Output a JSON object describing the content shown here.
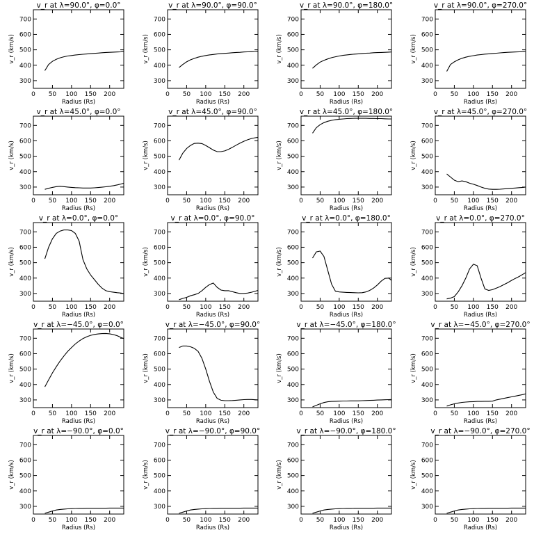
{
  "chart_data": {
    "type": "line",
    "grid": false,
    "xlim": [
      0,
      237
    ],
    "ylim": [
      250,
      760
    ],
    "xlabel": "Radius (Rs)",
    "ylabel": "v_r (km/s)",
    "xticks": [
      "0",
      "50",
      "100",
      "150",
      "200"
    ],
    "yticks": [
      "300",
      "400",
      "500",
      "600",
      "700"
    ],
    "x": [
      30,
      40,
      50,
      60,
      70,
      80,
      90,
      100,
      110,
      120,
      130,
      140,
      150,
      160,
      170,
      180,
      190,
      200,
      210,
      220,
      230,
      237
    ],
    "panels": [
      {
        "title": "v_r at λ=90.0°, φ=0.0°",
        "values": [
          365,
          405,
          425,
          438,
          448,
          455,
          460,
          463,
          466,
          469,
          471,
          473,
          475,
          477,
          479,
          481,
          483,
          484,
          485,
          486,
          487,
          490
        ]
      },
      {
        "title": "v_r at λ=90.0°, φ=90.0°",
        "values": [
          385,
          405,
          422,
          435,
          444,
          452,
          458,
          463,
          467,
          470,
          473,
          475,
          477,
          479,
          481,
          483,
          484,
          486,
          487,
          488,
          489,
          491
        ]
      },
      {
        "title": "v_r at λ=90.0°, φ=180.0°",
        "values": [
          380,
          402,
          420,
          432,
          441,
          449,
          455,
          460,
          464,
          467,
          470,
          472,
          474,
          476,
          478,
          479,
          481,
          482,
          483,
          484,
          485,
          486
        ]
      },
      {
        "title": "v_r at λ=90.0°, φ=270.0°",
        "values": [
          360,
          405,
          422,
          435,
          445,
          452,
          458,
          462,
          466,
          469,
          472,
          474,
          476,
          478,
          480,
          482,
          484,
          485,
          486,
          487,
          488,
          489
        ]
      },
      {
        "title": "v_r at λ=45.0°, φ=0.0°",
        "values": [
          285,
          292,
          298,
          303,
          305,
          303,
          300,
          298,
          296,
          295,
          294,
          294,
          294,
          295,
          297,
          299,
          302,
          305,
          309,
          314,
          320,
          325
        ]
      },
      {
        "title": "v_r at λ=45.0°, φ=90.0°",
        "values": [
          475,
          520,
          550,
          570,
          583,
          585,
          582,
          570,
          555,
          540,
          530,
          530,
          535,
          545,
          558,
          572,
          585,
          597,
          607,
          615,
          620,
          623
        ]
      },
      {
        "title": "v_r at λ=45.0°, φ=180.0°",
        "values": [
          650,
          685,
          705,
          718,
          727,
          733,
          737,
          740,
          742,
          744,
          745,
          746,
          746,
          746,
          746,
          745,
          745,
          744,
          744,
          743,
          742,
          742
        ]
      },
      {
        "title": "v_r at λ=45.0°, φ=270.0°",
        "values": [
          385,
          365,
          345,
          335,
          340,
          335,
          325,
          318,
          310,
          300,
          292,
          287,
          285,
          285,
          286,
          288,
          290,
          292,
          294,
          296,
          298,
          300
        ]
      },
      {
        "title": "v_r at λ=0.0°, φ=0.0°",
        "values": [
          525,
          600,
          655,
          690,
          705,
          712,
          712,
          708,
          690,
          640,
          520,
          460,
          420,
          390,
          360,
          335,
          318,
          312,
          308,
          305,
          303,
          300
        ]
      },
      {
        "title": "v_r at λ=0.0°, φ=90.0°",
        "values": [
          260,
          268,
          275,
          285,
          292,
          300,
          318,
          340,
          358,
          368,
          340,
          322,
          318,
          318,
          312,
          305,
          300,
          300,
          303,
          308,
          315,
          320
        ]
      },
      {
        "title": "v_r at λ=0.0°, φ=180.0°",
        "values": [
          530,
          570,
          575,
          540,
          450,
          360,
          315,
          310,
          308,
          307,
          306,
          305,
          304,
          305,
          310,
          320,
          335,
          355,
          380,
          398,
          400,
          385
        ]
      },
      {
        "title": "v_r at λ=0.0°, φ=270.0°",
        "values": [
          265,
          270,
          280,
          310,
          350,
          400,
          460,
          490,
          480,
          400,
          330,
          320,
          325,
          335,
          345,
          358,
          370,
          385,
          398,
          410,
          425,
          435
        ]
      },
      {
        "title": "v_r at λ=−45.0°, φ=0.0°",
        "values": [
          385,
          430,
          475,
          515,
          552,
          585,
          615,
          640,
          663,
          682,
          698,
          710,
          719,
          725,
          728,
          730,
          731,
          729,
          724,
          716,
          705,
          698
        ]
      },
      {
        "title": "v_r at λ=−45.0°, φ=90.0°",
        "values": [
          640,
          650,
          650,
          645,
          635,
          615,
          570,
          500,
          420,
          350,
          310,
          298,
          295,
          295,
          296,
          298,
          300,
          302,
          303,
          303,
          301,
          300
        ]
      },
      {
        "title": "v_r at λ=−45.0°, φ=180.0°",
        "values": [
          255,
          265,
          275,
          283,
          288,
          290,
          291,
          292,
          293,
          293,
          294,
          294,
          294,
          295,
          296,
          297,
          298,
          299,
          300,
          301,
          302,
          303
        ]
      },
      {
        "title": "v_r at λ=−45.0°, φ=270.0°",
        "values": [
          260,
          268,
          275,
          280,
          284,
          286,
          288,
          289,
          290,
          290,
          291,
          291,
          292,
          300,
          305,
          310,
          315,
          320,
          325,
          330,
          335,
          340
        ]
      },
      {
        "title": "v_r at λ=−90.0°, φ=0.0°",
        "values": [
          255,
          262,
          270,
          276,
          280,
          282,
          284,
          285,
          286,
          287,
          287,
          288,
          288,
          288,
          288,
          288,
          288,
          289,
          289,
          289,
          289,
          289
        ]
      },
      {
        "title": "v_r at λ=−90.0°, φ=90.0°",
        "values": [
          255,
          262,
          270,
          276,
          280,
          282,
          284,
          285,
          286,
          287,
          287,
          288,
          288,
          288,
          288,
          288,
          288,
          289,
          289,
          289,
          289,
          289
        ]
      },
      {
        "title": "v_r at λ=−90.0°, φ=180.0°",
        "values": [
          255,
          262,
          270,
          276,
          280,
          282,
          284,
          285,
          286,
          287,
          287,
          288,
          288,
          288,
          288,
          288,
          288,
          289,
          289,
          289,
          289,
          289
        ]
      },
      {
        "title": "v_r at λ=−90.0°, φ=270.0°",
        "values": [
          255,
          262,
          270,
          276,
          280,
          282,
          284,
          285,
          286,
          287,
          287,
          288,
          288,
          288,
          288,
          288,
          288,
          289,
          289,
          289,
          289,
          289
        ]
      }
    ]
  }
}
